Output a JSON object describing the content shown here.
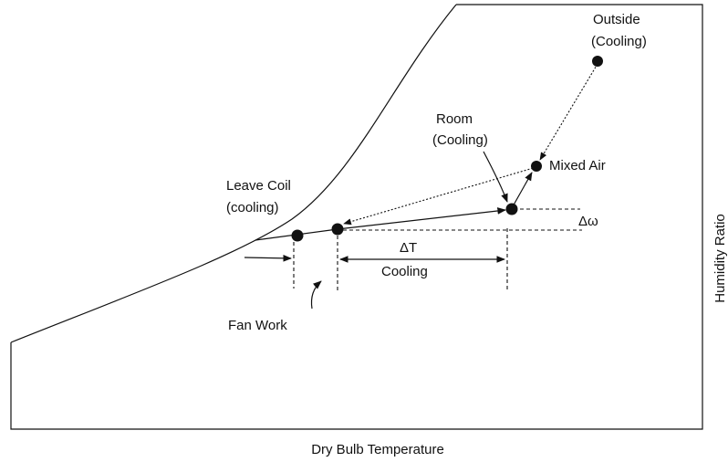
{
  "labels": {
    "outside_1": "Outside",
    "outside_2": "(Cooling)",
    "room_1": "Room",
    "room_2": "(Cooling)",
    "mixed_air": "Mixed Air",
    "leave_coil_1": "Leave Coil",
    "leave_coil_2": "(cooling)",
    "delta_omega": "Δω",
    "delta_t": "ΔT",
    "cooling": "Cooling",
    "fan_work": "Fan Work"
  },
  "x_axis_label": "Dry Bulb Temperature",
  "y_axis_label": "Humidity Ratio"
}
